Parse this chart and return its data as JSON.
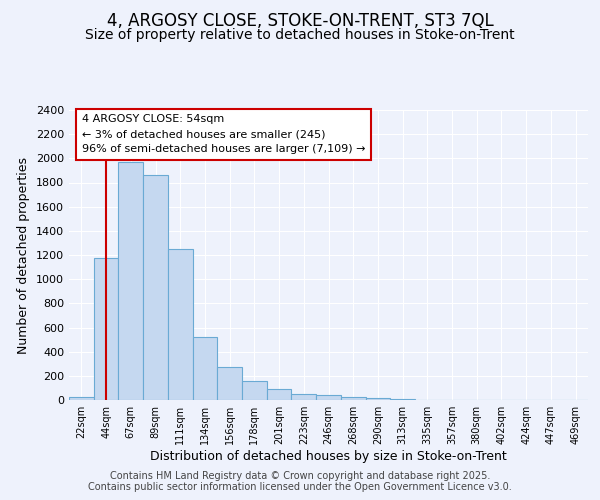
{
  "title": "4, ARGOSY CLOSE, STOKE-ON-TRENT, ST3 7QL",
  "subtitle": "Size of property relative to detached houses in Stoke-on-Trent",
  "xlabel": "Distribution of detached houses by size in Stoke-on-Trent",
  "ylabel": "Number of detached properties",
  "categories": [
    "22sqm",
    "44sqm",
    "67sqm",
    "89sqm",
    "111sqm",
    "134sqm",
    "156sqm",
    "178sqm",
    "201sqm",
    "223sqm",
    "246sqm",
    "268sqm",
    "290sqm",
    "313sqm",
    "335sqm",
    "357sqm",
    "380sqm",
    "402sqm",
    "424sqm",
    "447sqm",
    "469sqm"
  ],
  "values": [
    22,
    1175,
    1970,
    1860,
    1250,
    525,
    275,
    155,
    88,
    52,
    40,
    25,
    15,
    10,
    4,
    4,
    3,
    2,
    2,
    2,
    2
  ],
  "bar_color": "#c5d8f0",
  "bar_edge_color": "#6aaad4",
  "vline_color": "#cc0000",
  "vline_x": 1.5,
  "annotation_line1": "4 ARGOSY CLOSE: 54sqm",
  "annotation_line2": "← 3% of detached houses are smaller (245)",
  "annotation_line3": "96% of semi-detached houses are larger (7,109) →",
  "annotation_box_color": "#ffffff",
  "annotation_box_edge": "#cc0000",
  "ylim": [
    0,
    2400
  ],
  "yticks": [
    0,
    200,
    400,
    600,
    800,
    1000,
    1200,
    1400,
    1600,
    1800,
    2000,
    2200,
    2400
  ],
  "background_color": "#eef2fc",
  "grid_color": "#ffffff",
  "title_fontsize": 12,
  "subtitle_fontsize": 10,
  "axis_label_fontsize": 9,
  "tick_fontsize": 8,
  "footer_text": "Contains HM Land Registry data © Crown copyright and database right 2025.\nContains public sector information licensed under the Open Government Licence v3.0.",
  "footer_fontsize": 7
}
